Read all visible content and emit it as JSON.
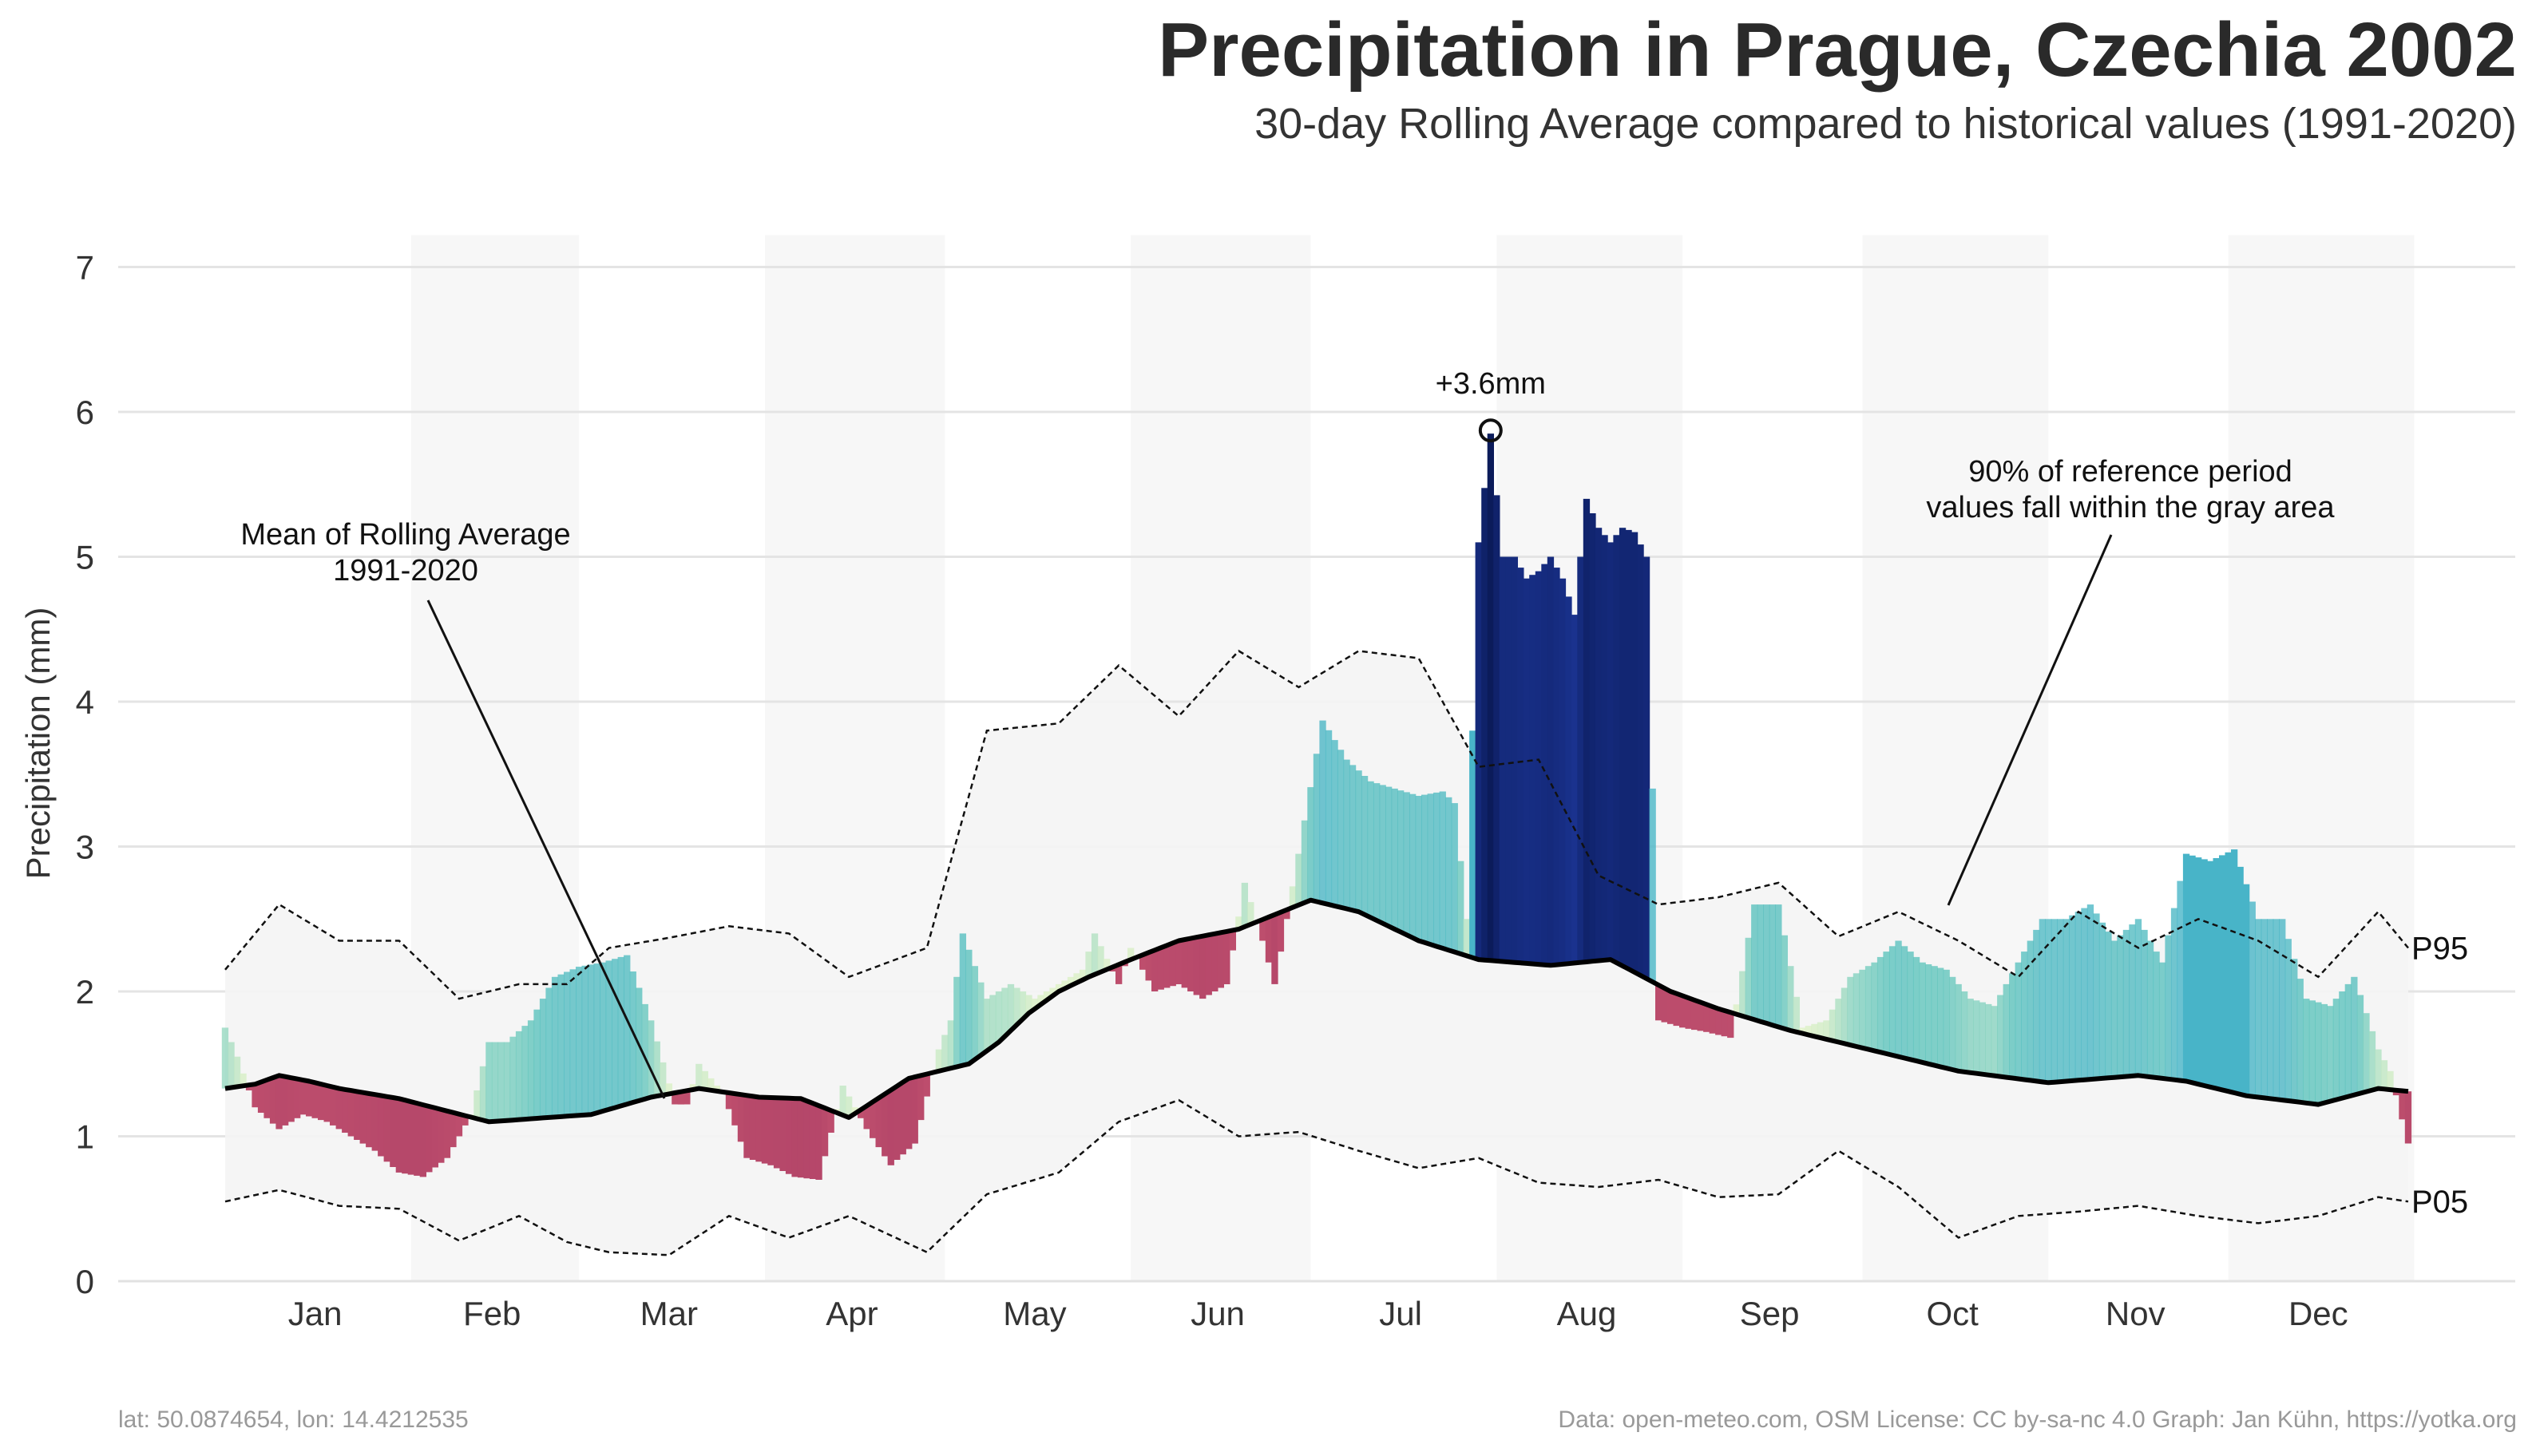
{
  "chart_data": {
    "type": "area",
    "title": "Precipitation in Prague, Czechia 2002",
    "subtitle": "30-day Rolling Average compared to historical values (1991-2020)",
    "ylabel": "Precipitation (mm)",
    "ylim": [
      0,
      7
    ],
    "yticks": [
      0,
      1,
      2,
      3,
      4,
      5,
      6,
      7
    ],
    "months": [
      "Jan",
      "Feb",
      "Mar",
      "Apr",
      "May",
      "Jun",
      "Jul",
      "Aug",
      "Sep",
      "Oct",
      "Nov",
      "Dec"
    ],
    "x_units": "day of year",
    "mean_1991_2020": {
      "x": [
        1,
        6,
        10,
        15,
        20,
        30,
        45,
        55,
        62,
        72,
        80,
        90,
        97,
        105,
        115,
        125,
        130,
        135,
        140,
        145,
        152,
        160,
        170,
        182,
        190,
        200,
        210,
        222,
        232,
        242,
        250,
        262,
        275,
        290,
        305,
        320,
        328,
        338,
        350,
        360,
        365
      ],
      "values": [
        1.33,
        1.36,
        1.42,
        1.38,
        1.33,
        1.26,
        1.1,
        1.13,
        1.15,
        1.27,
        1.33,
        1.27,
        1.26,
        1.13,
        1.4,
        1.5,
        1.65,
        1.85,
        2.0,
        2.1,
        2.22,
        2.35,
        2.43,
        2.63,
        2.55,
        2.35,
        2.22,
        2.18,
        2.22,
        2.0,
        1.88,
        1.73,
        1.6,
        1.45,
        1.37,
        1.42,
        1.38,
        1.28,
        1.22,
        1.33,
        1.31
      ]
    },
    "p95": {
      "x": [
        1,
        10,
        20,
        30,
        40,
        50,
        58,
        65,
        75,
        85,
        95,
        105,
        118,
        128,
        140,
        150,
        160,
        170,
        180,
        190,
        200,
        210,
        220,
        230,
        240,
        250,
        260,
        270,
        280,
        290,
        300,
        310,
        320,
        330,
        340,
        350,
        360,
        365
      ],
      "values": [
        2.15,
        2.6,
        2.35,
        2.35,
        1.95,
        2.05,
        2.05,
        2.3,
        2.37,
        2.45,
        2.4,
        2.1,
        2.3,
        3.8,
        3.85,
        4.25,
        3.9,
        4.35,
        4.1,
        4.35,
        4.3,
        3.55,
        3.6,
        2.8,
        2.6,
        2.65,
        2.75,
        2.38,
        2.55,
        2.35,
        2.1,
        2.55,
        2.3,
        2.5,
        2.35,
        2.1,
        2.55,
        2.3
      ]
    },
    "p05": {
      "x": [
        1,
        10,
        20,
        30,
        40,
        50,
        58,
        65,
        75,
        85,
        95,
        105,
        118,
        128,
        140,
        150,
        160,
        170,
        180,
        190,
        200,
        210,
        220,
        230,
        240,
        250,
        260,
        270,
        280,
        290,
        300,
        310,
        320,
        330,
        340,
        350,
        360,
        365
      ],
      "values": [
        0.55,
        0.63,
        0.52,
        0.5,
        0.28,
        0.45,
        0.27,
        0.2,
        0.18,
        0.45,
        0.3,
        0.45,
        0.2,
        0.6,
        0.75,
        1.1,
        1.25,
        1.0,
        1.03,
        0.9,
        0.78,
        0.85,
        0.68,
        0.65,
        0.7,
        0.58,
        0.6,
        0.9,
        0.65,
        0.3,
        0.45,
        0.48,
        0.52,
        0.45,
        0.4,
        0.45,
        0.58,
        0.55
      ]
    },
    "rolling_avg_2002": {
      "x": [
        1,
        3,
        6,
        10,
        14,
        18,
        22,
        26,
        30,
        34,
        38,
        42,
        45,
        48,
        52,
        56,
        60,
        64,
        68,
        72,
        76,
        78,
        80,
        84,
        88,
        92,
        96,
        100,
        104,
        108,
        112,
        116,
        120,
        122,
        124,
        128,
        132,
        136,
        140,
        144,
        146,
        150,
        152,
        156,
        160,
        164,
        168,
        171,
        174,
        176,
        180,
        184,
        188,
        192,
        196,
        200,
        204,
        206,
        208,
        210,
        212,
        214,
        216,
        218,
        220,
        222,
        224,
        226,
        228,
        230,
        232,
        234,
        236,
        238,
        240,
        244,
        248,
        252,
        256,
        260,
        264,
        268,
        272,
        276,
        280,
        284,
        288,
        292,
        296,
        300,
        304,
        308,
        312,
        316,
        320,
        324,
        328,
        332,
        336,
        340,
        344,
        348,
        352,
        356,
        360,
        362,
        365
      ],
      "values": [
        1.75,
        1.55,
        1.2,
        1.05,
        1.15,
        1.1,
        1.0,
        0.9,
        0.75,
        0.72,
        0.85,
        1.15,
        1.65,
        1.65,
        1.8,
        2.1,
        2.17,
        2.2,
        2.25,
        1.8,
        1.22,
        1.22,
        1.5,
        1.3,
        0.85,
        0.8,
        0.72,
        0.7,
        1.35,
        1.05,
        0.8,
        0.95,
        1.6,
        1.8,
        2.4,
        1.95,
        2.05,
        1.95,
        2.05,
        2.15,
        2.4,
        2.05,
        2.3,
        2.0,
        2.05,
        1.95,
        2.05,
        2.75,
        2.35,
        2.05,
        2.95,
        3.87,
        3.6,
        3.45,
        3.4,
        3.35,
        3.38,
        3.3,
        2.5,
        5.1,
        5.85,
        5.0,
        5.0,
        4.85,
        4.9,
        5.0,
        4.85,
        4.6,
        5.4,
        5.2,
        5.1,
        5.2,
        5.17,
        5.0,
        1.8,
        1.75,
        1.72,
        1.68,
        2.6,
        2.6,
        1.75,
        1.8,
        2.1,
        2.2,
        2.35,
        2.2,
        2.15,
        1.95,
        1.9,
        2.2,
        2.5,
        2.5,
        2.6,
        2.35,
        2.5,
        2.2,
        2.95,
        2.9,
        2.98,
        2.5,
        2.5,
        1.95,
        1.9,
        2.1,
        1.6,
        1.45,
        0.95
      ]
    },
    "annotations": {
      "mean_label": [
        "Mean of Rolling Average",
        "1991-2020"
      ],
      "gray_area_label": [
        "90% of reference period",
        "values fall within the gray area"
      ],
      "max_label": "+3.6mm",
      "max_point": {
        "x": 212,
        "y": 5.85
      },
      "p95_label": "P95",
      "p05_label": "P05"
    },
    "grid": true,
    "color_scale": {
      "below_mean": "#c0506e",
      "low": "#e8f5c6",
      "mid": "#5fc4bd",
      "high": "#1f3aa0",
      "top": "#0b1b5a"
    }
  },
  "footer": {
    "left": "lat: 50.0874654, lon: 14.4212535",
    "right": "Data: open-meteo.com, OSM  License: CC by-sa-nc 4.0  Graph: Jan Kühn, https://yotka.org"
  }
}
